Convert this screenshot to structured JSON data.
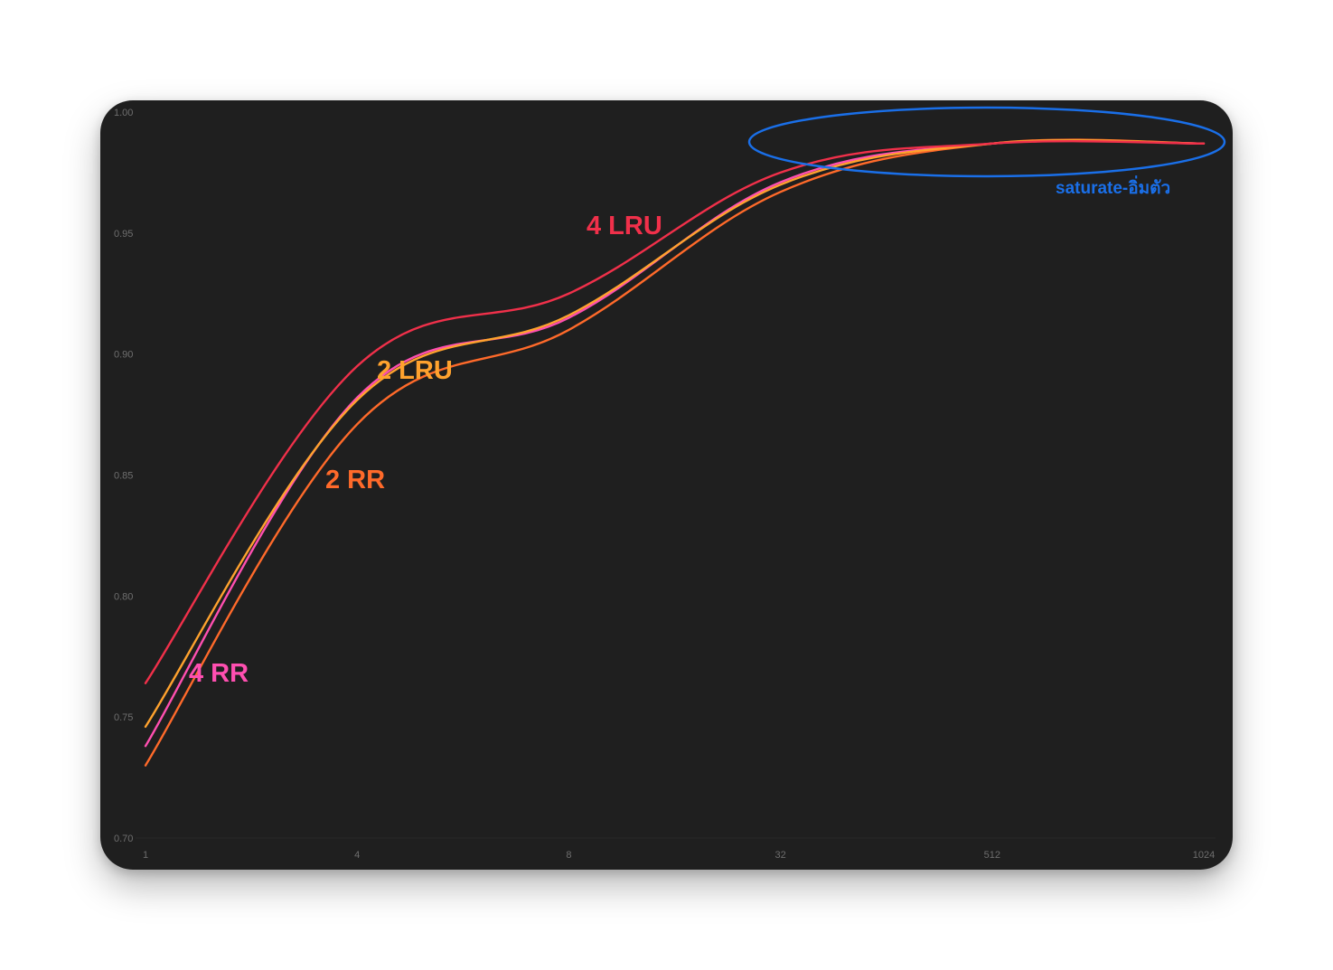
{
  "chart_data": {
    "type": "line",
    "title": "",
    "xlabel": "",
    "ylabel": "",
    "x": [
      "1",
      "4",
      "8",
      "32",
      "512",
      "1024"
    ],
    "ylim": [
      0.7,
      1.0
    ],
    "y_ticks": [
      "0.70",
      "0.75",
      "0.80",
      "0.85",
      "0.90",
      "0.95",
      "1.00"
    ],
    "grid": false,
    "series": [
      {
        "name": "4 LRU",
        "color": "#f0304a",
        "values": [
          0.764,
          0.895,
          0.925,
          0.975,
          0.987,
          0.987
        ]
      },
      {
        "name": "4 RR",
        "color": "#ff4fb0",
        "values": [
          0.738,
          0.882,
          0.915,
          0.971,
          0.987,
          0.987
        ]
      },
      {
        "name": "2 LRU",
        "color": "#ffa22e",
        "values": [
          0.746,
          0.881,
          0.916,
          0.97,
          0.987,
          0.987
        ]
      },
      {
        "name": "2 RR",
        "color": "#ff6a2a",
        "values": [
          0.73,
          0.871,
          0.91,
          0.967,
          0.987,
          0.987
        ]
      }
    ],
    "annotation": {
      "text": "saturate-อิ่มตัว",
      "color": "#1a6fe8",
      "shape": "ellipse"
    }
  }
}
